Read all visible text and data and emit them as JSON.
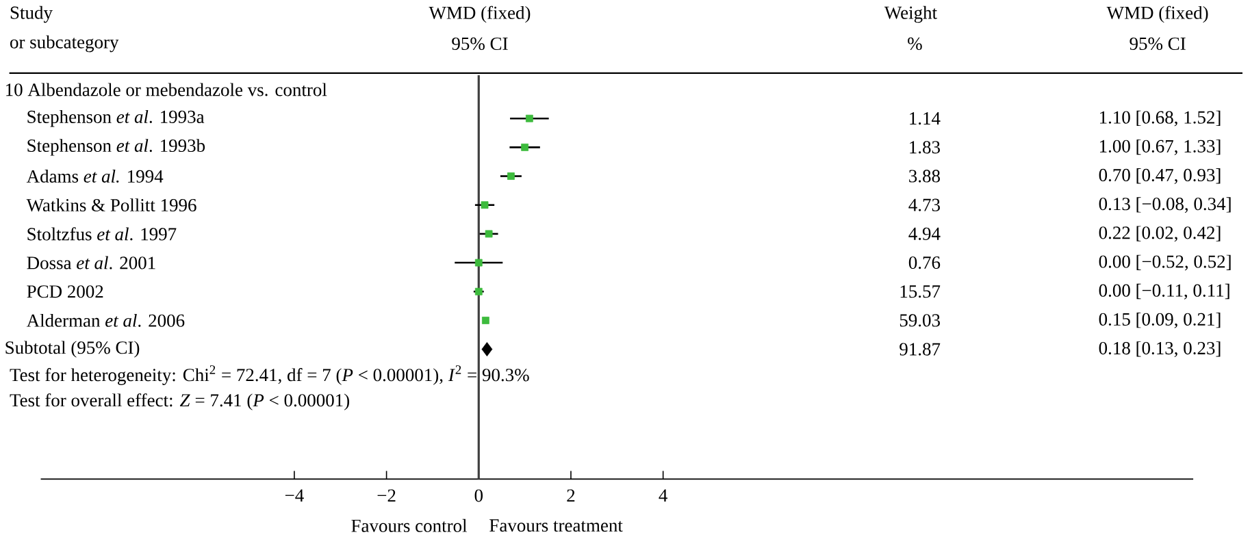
{
  "chart_data": {
    "type": "scatter",
    "orientation": "horizontal",
    "categories": [
      "10 Albendazole or mebendazole vs. control",
      "Stephenson *et al*. 1993a",
      "Stephenson *et al*. 1993b",
      "Adams *et al.* 1994",
      "Watkins & Pollitt 1996",
      "Stoltzfus *et al*. 1997",
      "Dossa *et al*. 2001",
      "PCD 2002",
      "Alderman *et al*. 2006",
      "Subtotal (95% CI)",
      null,
      null,
      null,
      null
    ],
    "series": [
      {
        "marker": "square",
        "color": "#3dbb3d",
        "values": [
          null,
          1.1,
          1.0,
          0.7,
          0.13,
          0.22,
          0.0,
          0.0,
          0.15,
          null,
          null,
          null,
          null,
          null
        ],
        "errors": [
          null,
          [
            0.68,
            1.52
          ],
          [
            0.67,
            1.33
          ],
          [
            0.47,
            0.93
          ],
          [
            -0.08,
            0.34
          ],
          [
            0.02,
            0.42
          ],
          [
            -0.52,
            0.52
          ],
          [
            -0.11,
            0.11
          ],
          [
            0.09,
            0.21
          ],
          null,
          null,
          null,
          null,
          null
        ]
      },
      {
        "marker": "diamond",
        "color": "#000000",
        "values": [
          null,
          null,
          null,
          null,
          null,
          null,
          null,
          null,
          null,
          0.18,
          null,
          null,
          null,
          null
        ],
        "errors": [
          null,
          null,
          null,
          null,
          null,
          null,
          null,
          null,
          null,
          [
            0.13,
            0.23
          ],
          null,
          null,
          null,
          null
        ]
      }
    ],
    "xlim": [
      -9.5,
      15.5
    ],
    "xticks": [
      {
        "value": -4,
        "label": "−4"
      },
      {
        "value": -2,
        "label": "−2"
      },
      0,
      2,
      4
    ],
    "ref_lines": [
      {
        "axis": "x",
        "value": 0,
        "color": "#404040"
      }
    ],
    "annotations": [
      "Study",
      "or subcategory",
      "WMD (fixed)",
      "95% CI",
      "Weight",
      "%",
      "WMD (fixed)",
      "95% CI",
      "Test for heterogeneity: Chi$^{2}$ = 72.41, df = 7 (*P* < 0.00001), *I*$^{2}$ = 90.3%",
      "Test for overall effect: *Z* = 7.41 (*P* < 0.00001)",
      "Favours control",
      "Favours treatment",
      "1.14",
      "1.83",
      "3.88",
      "4.73",
      "4.94",
      "0.76",
      "15.57",
      "59.03",
      "91.87",
      "1.10 [0.68, 1.52]",
      "1.00 [0.67, 1.33]",
      "0.70 [0.47, 0.93]",
      "0.13 [−0.08, 0.34]",
      "0.22 [0.02, 0.42]",
      "0.00 [−0.52, 0.52]",
      "0.00 [−0.11, 0.11]",
      "0.15 [0.09, 0.21]",
      "0.18 [0.13, 0.23]"
    ]
  }
}
